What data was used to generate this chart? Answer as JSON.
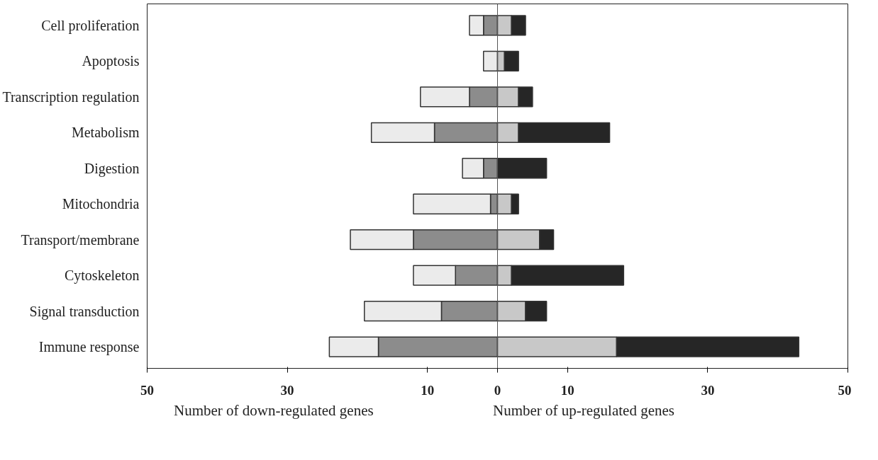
{
  "chart_data": {
    "type": "bar",
    "orientation": "horizontal",
    "stacked": true,
    "categories": [
      "Cell proliferation",
      "Apoptosis",
      "Transcription regulation",
      "Metabolism",
      "Digestion",
      "Mitochondria",
      "Transport/membrane",
      "Cytoskeleton",
      "Signal transduction",
      "Immune response"
    ],
    "series": [
      {
        "color": "#8c8c8c",
        "values": [
          -2,
          0,
          -4,
          -9,
          -2,
          -1,
          -12,
          -6,
          -8,
          -17
        ]
      },
      {
        "color": "#ebebeb",
        "values": [
          -2,
          -2,
          -7,
          -9,
          -3,
          -11,
          -9,
          -6,
          -11,
          -7
        ]
      },
      {
        "color": "#c8c8c8",
        "values": [
          2,
          1,
          3,
          3,
          0,
          2,
          6,
          2,
          4,
          17
        ]
      },
      {
        "color": "#262626",
        "values": [
          2,
          2,
          2,
          13,
          7,
          1,
          2,
          16,
          3,
          26
        ]
      }
    ],
    "xlim": [
      -50,
      50
    ],
    "xticks": [
      {
        "value": -50,
        "label": "50"
      },
      {
        "value": -30,
        "label": "30"
      },
      {
        "value": -10,
        "label": "10"
      },
      0,
      10,
      30,
      50
    ],
    "ref_lines": [
      {
        "axis": "x",
        "value": 0,
        "label": null,
        "color": "#555555"
      }
    ],
    "annotations": [
      "Number of down-regulated genes",
      "Number of up-regulated genes"
    ],
    "grid": false
  }
}
